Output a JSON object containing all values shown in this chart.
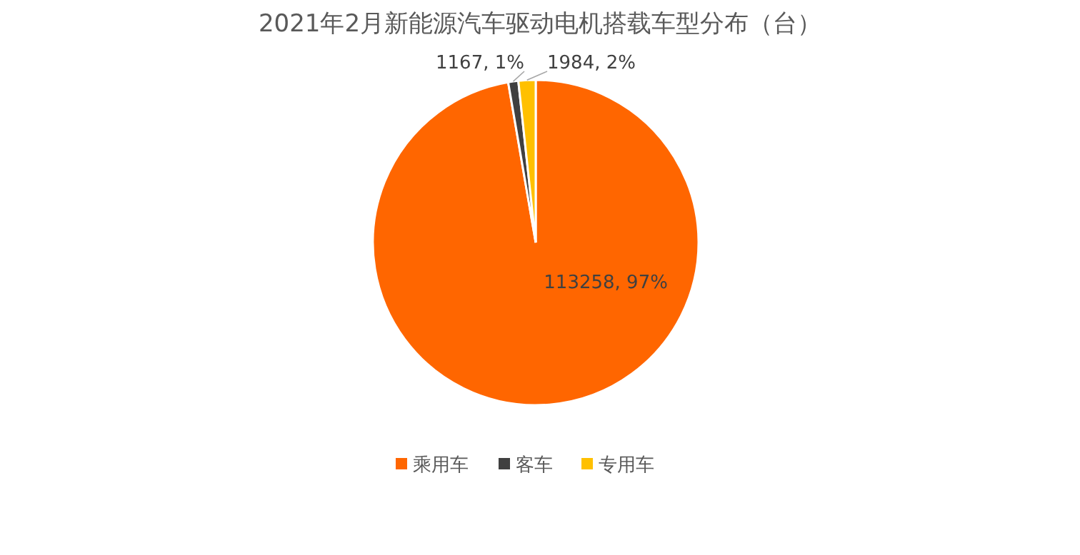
{
  "chart_data": {
    "type": "pie",
    "title": "2021年2月新能源汽车驱动电机搭载车型分布（台）",
    "categories": [
      "乘用车",
      "客车",
      "专用车"
    ],
    "values": [
      113258,
      1167,
      1984
    ],
    "value_labels": [
      "113258, 97%",
      "1167, 1%",
      "1984, 2%"
    ],
    "colors": [
      "#ff6600",
      "#404040",
      "#ffc000"
    ],
    "legend": "bottom"
  }
}
